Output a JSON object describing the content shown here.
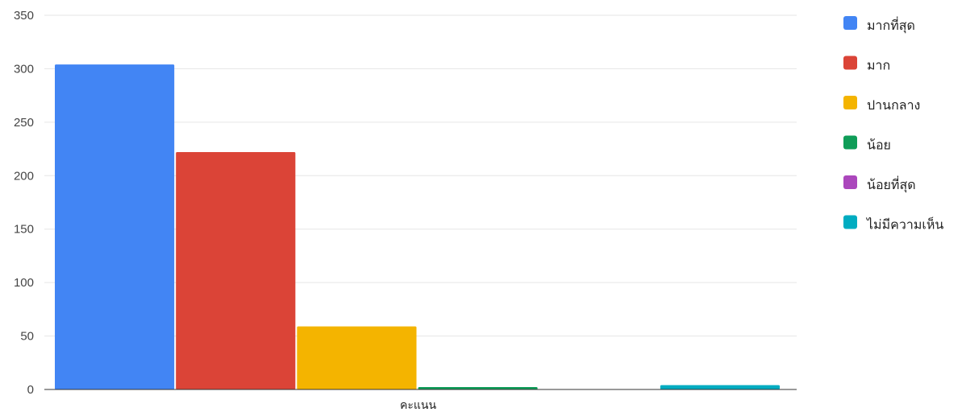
{
  "chart_data": {
    "type": "bar",
    "categories": [
      "คะแนน"
    ],
    "series": [
      {
        "name": "มากที่สุด",
        "values": [
          304
        ],
        "color": "#4285f4"
      },
      {
        "name": "มาก",
        "values": [
          222
        ],
        "color": "#db4437"
      },
      {
        "name": "ปานกลาง",
        "values": [
          59
        ],
        "color": "#f4b400"
      },
      {
        "name": "น้อย",
        "values": [
          2
        ],
        "color": "#0f9d58"
      },
      {
        "name": "น้อยที่สุด",
        "values": [
          0
        ],
        "color": "#ab47bc"
      },
      {
        "name": "ไม่มีความเห็น",
        "values": [
          4
        ],
        "color": "#00acc1"
      }
    ],
    "title": "",
    "xlabel": "",
    "ylabel": "",
    "ylim": [
      0,
      350
    ],
    "yticks": [
      "0",
      "50",
      "100",
      "150",
      "200",
      "250",
      "300",
      "350"
    ],
    "grid": true,
    "legend_position": "right"
  }
}
